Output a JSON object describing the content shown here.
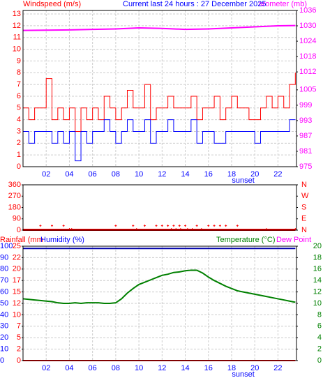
{
  "chart_data": [
    {
      "type": "line",
      "title": "Current last 24 hours : 27 December 2025",
      "ylabel": "Windspeed (m/s)",
      "y2label": "arometer (mb)",
      "xlim": [
        0,
        23.6
      ],
      "xticks": [
        {
          "value": 2,
          "label": "02"
        },
        {
          "value": 4,
          "label": "04"
        },
        {
          "value": 6,
          "label": "06"
        },
        {
          "value": 8,
          "label": "08"
        },
        {
          "value": 10,
          "label": "10"
        },
        {
          "value": 12,
          "label": "12"
        },
        {
          "value": 14,
          "label": "14"
        },
        {
          "value": 16,
          "label": "16"
        },
        {
          "value": 18,
          "label": "18"
        },
        {
          "value": 20,
          "label": "20"
        },
        {
          "value": 22,
          "label": "22"
        }
      ],
      "ylim": [
        0,
        13.3
      ],
      "yticks": [
        0,
        1,
        2,
        3,
        4,
        5,
        6,
        7,
        8,
        9,
        10,
        11,
        12,
        13
      ],
      "y2lim": [
        975,
        1036
      ],
      "y2ticks": [
        975,
        981,
        987,
        993,
        999,
        1005,
        1012,
        1018,
        1024,
        1030,
        1036
      ],
      "grid": true,
      "ycolor": "#ff0000",
      "y2color": "#ff00ff",
      "xcolor": "#0000ff",
      "titlecolor": "#0000ff",
      "annotations": [
        {
          "text": "sunset",
          "x": 19
        }
      ],
      "series": [
        {
          "color": "#ff0000",
          "step": true,
          "x": [
            0,
            0.5,
            1,
            1.5,
            2,
            2.5,
            3,
            3.5,
            4,
            4.5,
            5,
            5.5,
            6,
            6.5,
            7,
            7.5,
            8,
            8.5,
            9,
            9.5,
            10,
            10.5,
            11,
            11.5,
            12,
            12.5,
            13,
            13.5,
            14,
            14.5,
            15,
            15.5,
            16,
            16.5,
            17,
            17.5,
            18,
            18.5,
            19,
            19.5,
            20,
            20.5,
            21,
            21.5,
            22,
            22.5,
            23,
            23.5
          ],
          "values": [
            5,
            4,
            5,
            5,
            7.5,
            4,
            5,
            4,
            5,
            3,
            5,
            4,
            5,
            4,
            6,
            5,
            4,
            5,
            6.5,
            5,
            5,
            7,
            4,
            5,
            5,
            6,
            5,
            5,
            5,
            6,
            4,
            5,
            5,
            6,
            4,
            5,
            6,
            5,
            5,
            4,
            4,
            5,
            6,
            5,
            6,
            5,
            7,
            8
          ]
        },
        {
          "color": "#0000ff",
          "step": true,
          "x": [
            0,
            0.5,
            1,
            1.5,
            2,
            2.5,
            3,
            3.5,
            4,
            4.5,
            5,
            5.5,
            6,
            6.5,
            7,
            7.5,
            8,
            8.5,
            9,
            9.5,
            10,
            10.5,
            11,
            11.5,
            12,
            12.5,
            13,
            13.5,
            14,
            14.5,
            15,
            15.5,
            16,
            16.5,
            17,
            17.5,
            18,
            18.5,
            19,
            19.5,
            20,
            20.5,
            21,
            21.5,
            22,
            22.5,
            23,
            23.5
          ],
          "values": [
            3,
            2,
            3,
            3,
            3,
            2,
            3,
            2,
            3,
            0.5,
            3,
            2,
            3,
            3,
            4,
            3,
            2,
            3,
            4,
            3,
            3,
            4,
            2,
            3,
            3,
            4,
            3,
            3,
            3,
            4,
            2,
            3,
            3,
            2,
            2,
            3,
            3,
            3,
            3,
            3,
            2,
            3,
            3,
            3,
            3,
            3,
            4,
            4
          ]
        },
        {
          "color": "#ff00ff",
          "axis": "y2",
          "width": 2,
          "x": [
            0,
            4,
            8,
            10,
            12,
            14,
            16,
            18,
            20,
            22,
            23.5
          ],
          "values": [
            1028.2,
            1028.4,
            1028.8,
            1029.2,
            1029.0,
            1028.6,
            1028.8,
            1029.2,
            1029.6,
            1030.0,
            1030.1
          ]
        }
      ]
    },
    {
      "type": "scatter",
      "xlim": [
        0,
        23.6
      ],
      "ylim": [
        0,
        360
      ],
      "yticks": [
        0,
        90,
        180,
        270,
        360
      ],
      "y2lim": [
        0,
        360
      ],
      "y2ticks": [
        {
          "value": 0,
          "label": "N"
        },
        {
          "value": 90,
          "label": "E"
        },
        {
          "value": 180,
          "label": "S"
        },
        {
          "value": 270,
          "label": "W"
        },
        {
          "value": 360,
          "label": "N"
        }
      ],
      "ycolor": "#ff0000",
      "y2color": "#ff0000",
      "series": [
        {
          "color": "#ff0000",
          "line": true,
          "width": 3,
          "x": [
            0,
            23.5
          ],
          "values": [
            3,
            3
          ]
        },
        {
          "color": "#ff0000",
          "x": [
            1.5,
            2.5,
            3.5,
            8,
            9.5,
            10.5,
            11.5,
            12,
            12.5,
            13,
            13.5,
            14,
            15,
            16,
            16.5,
            17,
            17.5,
            18.5
          ],
          "values": [
            35,
            35,
            35,
            35,
            35,
            35,
            35,
            35,
            35,
            35,
            35,
            35,
            35,
            35,
            35,
            35,
            35,
            35
          ]
        },
        {
          "color": "#ff0000",
          "x": [
            4,
            4.2,
            9.8,
            12.8,
            13.2,
            13.6,
            14.2,
            14.6,
            15.4,
            21,
            23.5
          ],
          "values": [
            8,
            8,
            8,
            8,
            8,
            8,
            8,
            8,
            8,
            8,
            8
          ]
        }
      ]
    },
    {
      "type": "line",
      "ylabel": "Humidity (%)",
      "y3label": "Rainfall (mm",
      "y2label": "Temperature (°C)",
      "y4label": "Dew Point",
      "xlim": [
        0,
        23.6
      ],
      "xticks": [
        {
          "value": 2,
          "label": "02"
        },
        {
          "value": 4,
          "label": "04"
        },
        {
          "value": 6,
          "label": "06"
        },
        {
          "value": 8,
          "label": "08"
        },
        {
          "value": 10,
          "label": "10"
        },
        {
          "value": 12,
          "label": "12"
        },
        {
          "value": 14,
          "label": "14"
        },
        {
          "value": 16,
          "label": "16"
        },
        {
          "value": 18,
          "label": "18"
        },
        {
          "value": 20,
          "label": "20"
        },
        {
          "value": 22,
          "label": "22"
        }
      ],
      "ylim": [
        0,
        100
      ],
      "yticks": [
        0,
        10,
        20,
        30,
        40,
        50,
        60,
        70,
        80,
        90,
        100
      ],
      "y3lim": [
        0,
        25
      ],
      "y3ticks": [
        0,
        {
          "value": 2.5,
          "label": "2"
        },
        5,
        {
          "value": 7.5,
          "label": "7"
        },
        10,
        {
          "value": 12.5,
          "label": "12"
        },
        15,
        {
          "value": 17.5,
          "label": "17"
        },
        20,
        {
          "value": 22.5,
          "label": "22"
        },
        25
      ],
      "y2lim": [
        0,
        20
      ],
      "y2ticks": [
        0,
        2,
        4,
        6,
        8,
        10,
        12,
        14,
        16,
        18,
        20
      ],
      "grid": true,
      "ycolor": "#0000ff",
      "y3color": "#ff0000",
      "y2color": "#008000",
      "y4color": "#ff00ff",
      "xcolor": "#0000ff",
      "annotations": [
        {
          "text": "sunset",
          "x": 19
        }
      ],
      "series": [
        {
          "color": "#0000aa",
          "width": 2,
          "x": [
            0,
            23.5
          ],
          "values": [
            98,
            98
          ]
        },
        {
          "color": "#ff0000",
          "axis": "y3",
          "width": 2,
          "x": [
            0,
            23.5
          ],
          "values": [
            0,
            0
          ]
        },
        {
          "color": "#008000",
          "axis": "y2",
          "width": 2,
          "x": [
            0,
            0.5,
            1,
            1.5,
            2,
            2.5,
            3,
            3.5,
            4,
            4.5,
            5,
            5.5,
            6,
            6.5,
            7,
            7.5,
            8,
            8.5,
            9,
            9.5,
            10,
            10.5,
            11,
            11.5,
            12,
            12.5,
            13,
            13.5,
            14,
            14.5,
            15,
            15.5,
            16,
            16.5,
            17,
            17.5,
            18,
            18.5,
            19,
            19.5,
            20,
            20.5,
            21,
            21.5,
            22,
            22.5,
            23,
            23.5
          ],
          "values": [
            10.8,
            10.7,
            10.6,
            10.5,
            10.4,
            10.3,
            10.1,
            10.0,
            10.0,
            10.1,
            10.0,
            10.1,
            10.1,
            10.1,
            10.0,
            10.0,
            10.1,
            10.8,
            11.8,
            12.6,
            13.3,
            13.7,
            14.1,
            14.5,
            14.9,
            15.1,
            15.4,
            15.5,
            15.7,
            15.8,
            15.8,
            15.3,
            14.6,
            14.0,
            13.5,
            13.0,
            12.6,
            12.2,
            12.0,
            11.8,
            11.6,
            11.4,
            11.2,
            11.0,
            10.8,
            10.6,
            10.4,
            10.2
          ]
        }
      ]
    }
  ]
}
